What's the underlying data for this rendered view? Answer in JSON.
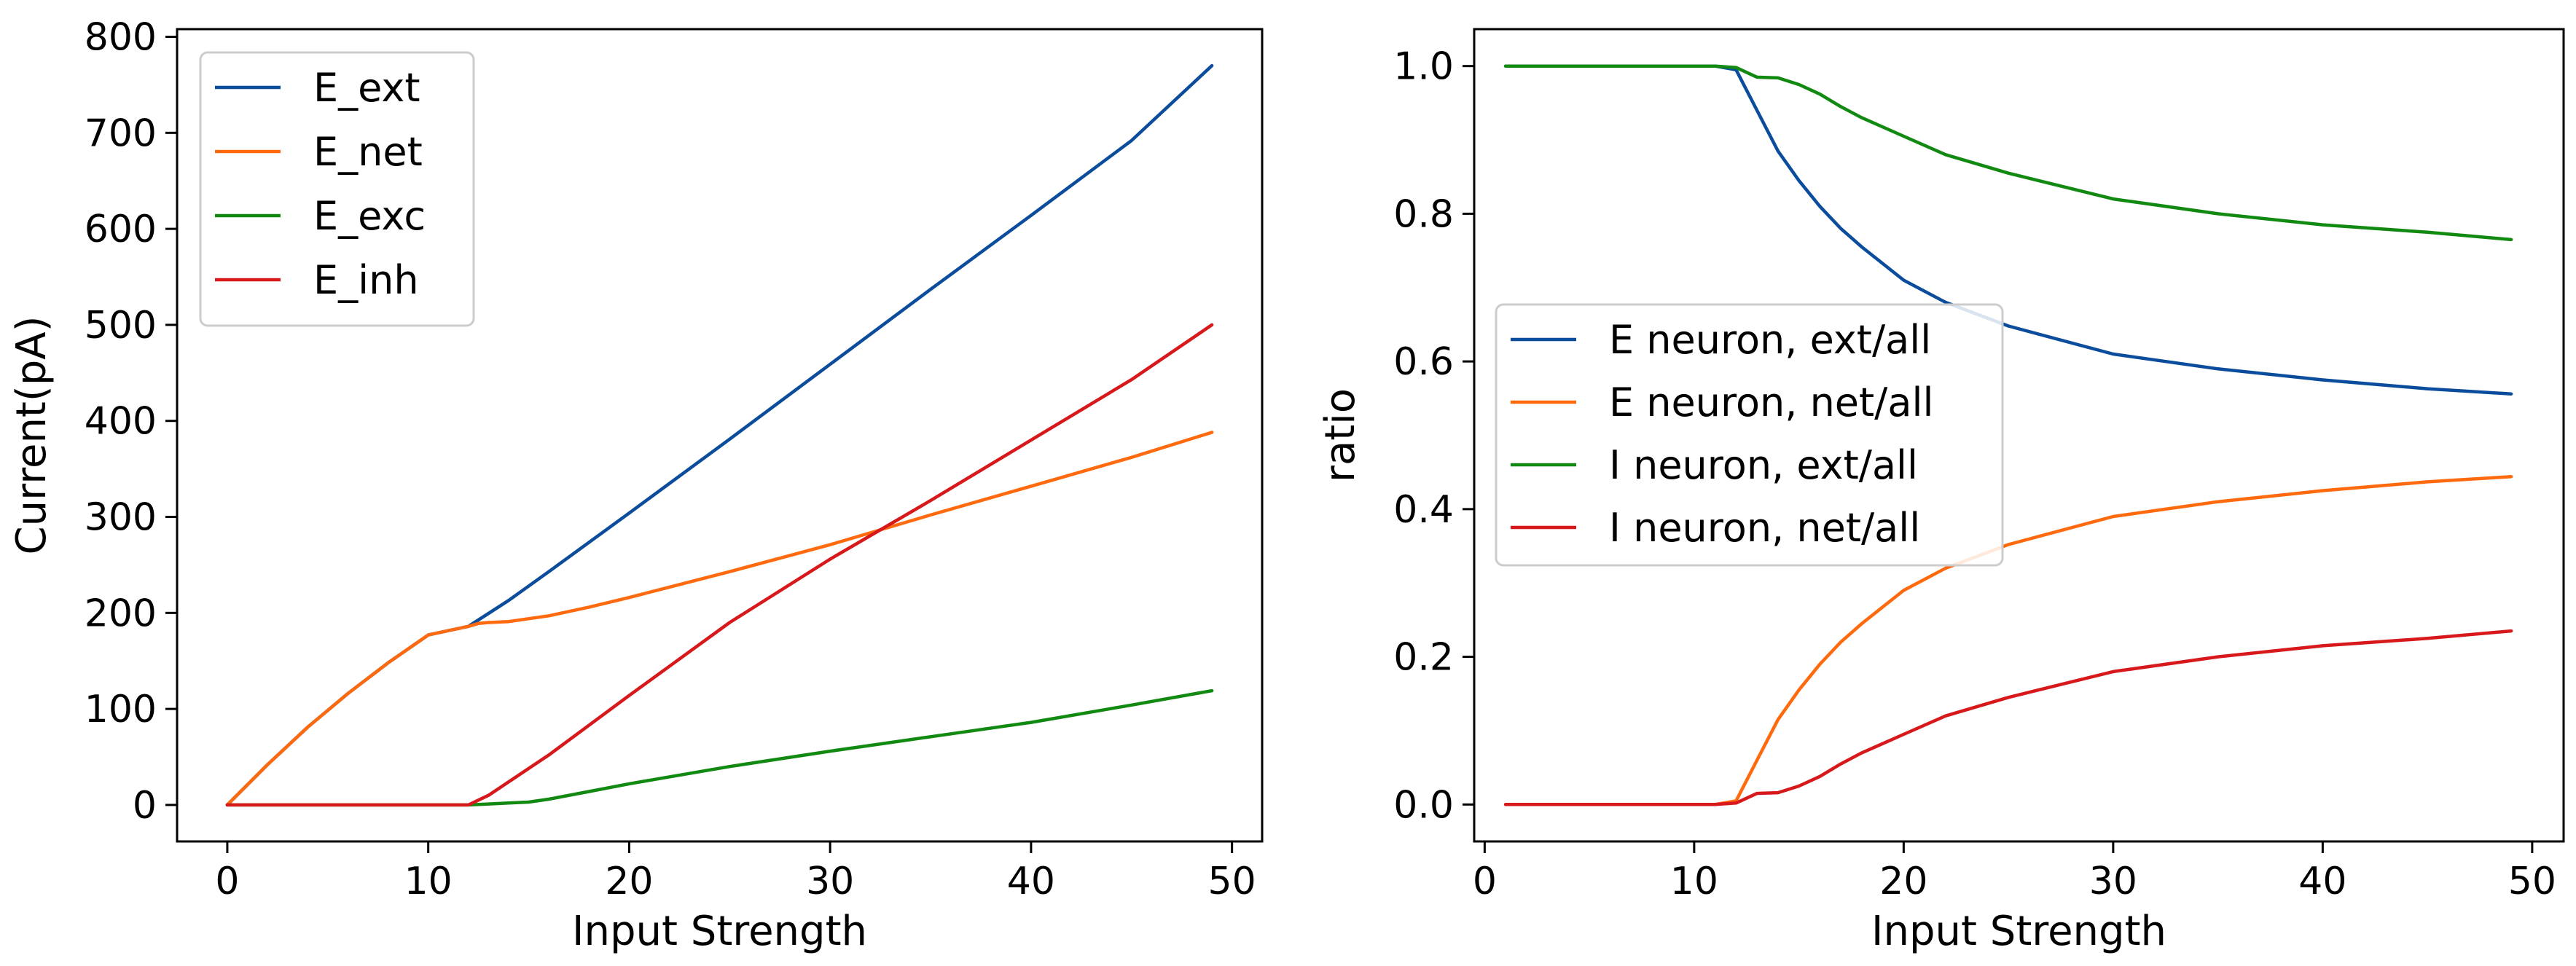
{
  "chart_data": [
    {
      "type": "line",
      "title": "",
      "xlabel": "Input Strength",
      "ylabel": "Current(pA)",
      "xlim": [
        -2.5,
        51.5
      ],
      "ylim": [
        -38,
        808
      ],
      "xticks": [
        0,
        10,
        20,
        30,
        40,
        50
      ],
      "yticks": [
        0,
        100,
        200,
        300,
        400,
        500,
        600,
        700,
        800
      ],
      "grid": false,
      "legend_position": "upper-left",
      "series": [
        {
          "name": "E_ext",
          "color": "#0b4d9c",
          "x": [
            0,
            2,
            4,
            6,
            8,
            10,
            12,
            14,
            16,
            20,
            25,
            30,
            35,
            40,
            45,
            49
          ],
          "y": [
            0,
            42,
            81,
            116,
            148,
            177,
            186,
            213,
            243,
            304,
            381,
            459,
            537,
            614,
            692,
            770
          ]
        },
        {
          "name": "E_net",
          "color": "#ff6a0f",
          "x": [
            0,
            2,
            4,
            6,
            8,
            10,
            12,
            12.5,
            13,
            14,
            16,
            18,
            20,
            25,
            30,
            35,
            40,
            45,
            49
          ],
          "y": [
            0,
            42,
            81,
            116,
            148,
            177,
            186,
            189,
            190,
            191,
            197,
            206,
            216,
            243,
            271,
            302,
            332,
            362,
            388
          ]
        },
        {
          "name": "E_exc",
          "color": "#128a12",
          "x": [
            0,
            12,
            13,
            14,
            15,
            16,
            18,
            20,
            25,
            30,
            35,
            40,
            45,
            49
          ],
          "y": [
            0,
            0,
            1,
            2,
            3,
            6,
            14,
            22,
            40,
            56,
            71,
            86,
            104,
            119
          ]
        },
        {
          "name": "E_inh",
          "color": "#d7191c",
          "x": [
            0,
            12,
            13,
            14,
            16,
            20,
            25,
            30,
            35,
            40,
            45,
            49
          ],
          "y": [
            0,
            0,
            10,
            24,
            52,
            114,
            190,
            256,
            317,
            380,
            443,
            500
          ]
        }
      ]
    },
    {
      "type": "line",
      "title": "",
      "xlabel": "Input Strength",
      "ylabel": "ratio",
      "xlim": [
        -0.5,
        51.5
      ],
      "ylim": [
        -0.05,
        1.05
      ],
      "xticks": [
        0,
        10,
        20,
        30,
        40,
        50
      ],
      "yticks": [
        0.0,
        0.2,
        0.4,
        0.6,
        0.8,
        1.0
      ],
      "ytick_labels": [
        "0.0",
        "0.2",
        "0.4",
        "0.6",
        "0.8",
        "1.0"
      ],
      "grid": false,
      "legend_position": "center-left",
      "series": [
        {
          "name": "E neuron, ext/all",
          "color": "#0b4d9c",
          "x": [
            1,
            11,
            12,
            13,
            14,
            15,
            16,
            17,
            18,
            20,
            22,
            25,
            30,
            35,
            40,
            45,
            49
          ],
          "y": [
            1.0,
            1.0,
            0.995,
            0.94,
            0.885,
            0.845,
            0.81,
            0.78,
            0.755,
            0.71,
            0.68,
            0.648,
            0.61,
            0.59,
            0.575,
            0.563,
            0.556
          ]
        },
        {
          "name": "E neuron, net/all",
          "color": "#ff6a0f",
          "x": [
            1,
            11,
            12,
            13,
            14,
            15,
            16,
            17,
            18,
            20,
            22,
            25,
            30,
            35,
            40,
            45,
            49
          ],
          "y": [
            0.0,
            0.0,
            0.005,
            0.06,
            0.115,
            0.155,
            0.19,
            0.22,
            0.245,
            0.29,
            0.32,
            0.352,
            0.39,
            0.41,
            0.425,
            0.437,
            0.444
          ]
        },
        {
          "name": "I neuron, ext/all",
          "color": "#128a12",
          "x": [
            1,
            11,
            12,
            13,
            14,
            15,
            16,
            17,
            18,
            20,
            22,
            25,
            30,
            35,
            40,
            45,
            49
          ],
          "y": [
            1.0,
            1.0,
            0.998,
            0.985,
            0.984,
            0.975,
            0.962,
            0.945,
            0.93,
            0.905,
            0.88,
            0.855,
            0.82,
            0.8,
            0.785,
            0.775,
            0.765
          ]
        },
        {
          "name": "I neuron, net/all",
          "color": "#d7191c",
          "x": [
            1,
            11,
            12,
            13,
            14,
            15,
            16,
            17,
            18,
            20,
            22,
            25,
            30,
            35,
            40,
            45,
            49
          ],
          "y": [
            0.0,
            0.0,
            0.002,
            0.015,
            0.016,
            0.025,
            0.038,
            0.055,
            0.07,
            0.095,
            0.12,
            0.145,
            0.18,
            0.2,
            0.215,
            0.225,
            0.235
          ]
        }
      ]
    }
  ]
}
